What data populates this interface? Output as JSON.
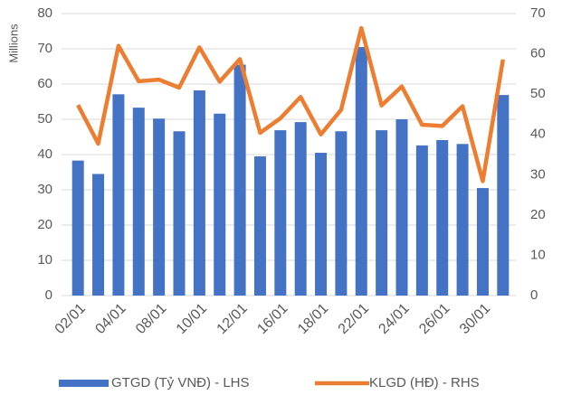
{
  "chart_data": {
    "type": "bar-line",
    "y_label": "Millions",
    "categories": [
      "02/01",
      null,
      "04/01",
      null,
      "08/01",
      null,
      "10/01",
      null,
      "12/01",
      null,
      "16/01",
      null,
      "18/01",
      null,
      "22/01",
      null,
      "24/01",
      null,
      "26/01",
      null,
      "30/01",
      null
    ],
    "series": [
      {
        "name": "GTGD (Tỷ VNĐ) - LHS",
        "color": "#4472c4",
        "type": "bar",
        "values": [
          38.3,
          34.5,
          57.1,
          53.3,
          50.2,
          46.6,
          58.2,
          51.6,
          65.5,
          39.5,
          46.9,
          49.2,
          40.5,
          46.6,
          70.5,
          46.9,
          50.0,
          42.6,
          44.1,
          43.0,
          30.5,
          56.9
        ]
      },
      {
        "name": "KLGD (HĐ) - RHS",
        "color": "#ed7d31",
        "type": "line",
        "axis": "y2",
        "values": [
          47.3,
          37.7,
          62.0,
          53.2,
          53.6,
          51.6,
          61.6,
          53.1,
          58.7,
          40.4,
          44.0,
          49.3,
          40.0,
          46.1,
          66.4,
          47.2,
          51.9,
          42.4,
          42.1,
          47.0,
          28.4,
          58.6
        ]
      }
    ],
    "ylim": [
      0,
      80
    ],
    "yticks": [
      0,
      10,
      20,
      30,
      40,
      50,
      60,
      70,
      80
    ],
    "y2lim": [
      0,
      70
    ],
    "y2ticks": [
      0,
      10,
      20,
      30,
      40,
      50,
      60,
      70
    ],
    "grid": true
  }
}
